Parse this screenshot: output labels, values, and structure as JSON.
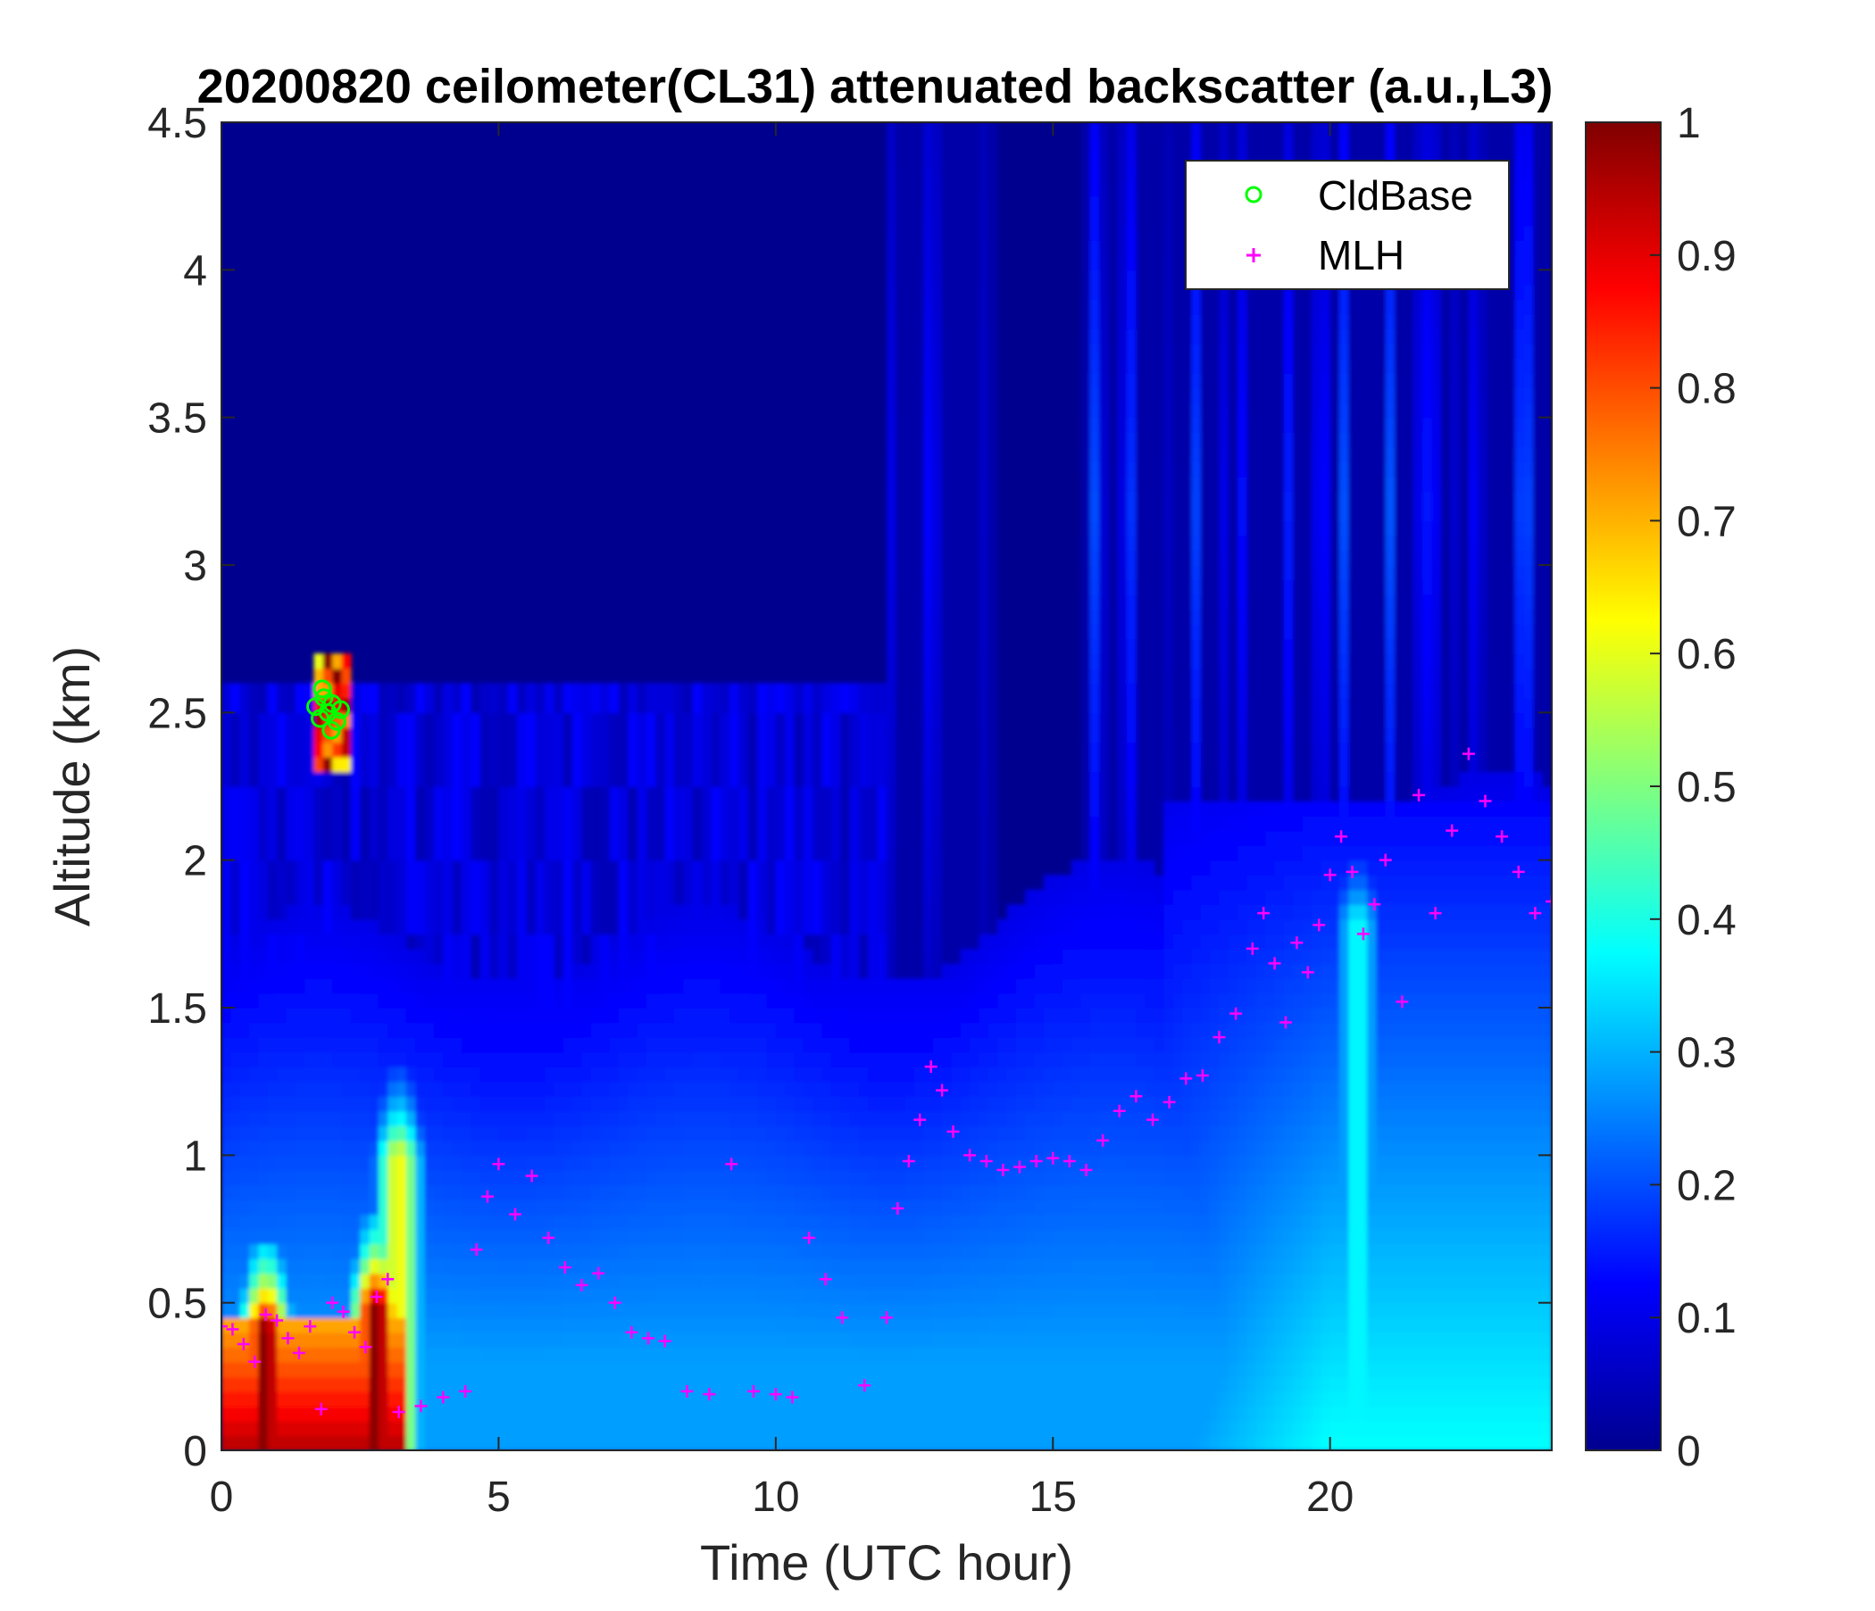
{
  "chart_data": {
    "type": "heatmap",
    "title": "20200820 ceilometer(CL31) attenuated backscatter (a.u.,L3)",
    "xlabel": "Time (UTC hour)",
    "ylabel": "Altitude (km)",
    "xlim": [
      0,
      24
    ],
    "ylim": [
      0,
      4.5
    ],
    "x_ticks": [
      0,
      5,
      10,
      15,
      20
    ],
    "y_ticks": [
      0,
      0.5,
      1,
      1.5,
      2,
      2.5,
      3,
      3.5,
      4,
      4.5
    ],
    "x_tick_labels": [
      "0",
      "5",
      "10",
      "15",
      "20"
    ],
    "y_tick_labels": [
      "0",
      "0.5",
      "1",
      "1.5",
      "2",
      "2.5",
      "3",
      "3.5",
      "4",
      "4.5"
    ],
    "colorbar": {
      "colormap": "jet",
      "range": [
        0,
        1
      ],
      "ticks": [
        0,
        0.1,
        0.2,
        0.3,
        0.4,
        0.5,
        0.6,
        0.7,
        0.8,
        0.9,
        1
      ],
      "tick_labels": [
        "0",
        "0.1",
        "0.2",
        "0.3",
        "0.4",
        "0.5",
        "0.6",
        "0.7",
        "0.8",
        "0.9",
        "1"
      ]
    },
    "legend": {
      "position": "top-right",
      "entries": [
        {
          "label": "CldBase",
          "marker": "circle",
          "color": "#00ff00"
        },
        {
          "label": "MLH",
          "marker": "plus",
          "color": "#ff00ff"
        }
      ]
    },
    "series": [
      {
        "name": "CldBase",
        "marker": "circle",
        "color": "#00ff00",
        "x": [
          1.7,
          1.78,
          1.85,
          1.92,
          2.0,
          2.08,
          2.15,
          1.82,
          1.98
        ],
        "y": [
          2.52,
          2.48,
          2.55,
          2.5,
          2.53,
          2.47,
          2.51,
          2.58,
          2.44
        ]
      },
      {
        "name": "MLH",
        "marker": "plus",
        "color": "#ff00ff",
        "x": [
          0.0,
          0.2,
          0.4,
          0.6,
          0.8,
          1.0,
          1.2,
          1.4,
          1.6,
          1.8,
          2.0,
          2.2,
          2.4,
          2.6,
          2.8,
          3.0,
          3.2,
          3.6,
          4.0,
          4.4,
          4.6,
          4.8,
          5.0,
          5.3,
          5.6,
          5.9,
          6.2,
          6.5,
          6.8,
          7.1,
          7.4,
          7.7,
          8.0,
          8.4,
          8.8,
          9.2,
          9.6,
          10.0,
          10.3,
          10.6,
          10.9,
          11.2,
          11.6,
          12.0,
          12.2,
          12.4,
          12.6,
          12.8,
          13.0,
          13.2,
          13.5,
          13.8,
          14.1,
          14.4,
          14.7,
          15.0,
          15.3,
          15.6,
          15.9,
          16.2,
          16.5,
          16.8,
          17.1,
          17.4,
          17.7,
          18.0,
          18.3,
          18.6,
          18.8,
          19.0,
          19.2,
          19.4,
          19.6,
          19.8,
          20.0,
          20.2,
          20.4,
          20.6,
          20.8,
          21.0,
          21.3,
          21.6,
          21.9,
          22.2,
          22.5,
          22.8,
          23.1,
          23.4,
          23.7,
          24.0
        ],
        "y": [
          0.42,
          0.41,
          0.36,
          0.3,
          0.46,
          0.44,
          0.38,
          0.33,
          0.42,
          0.14,
          0.5,
          0.47,
          0.4,
          0.35,
          0.52,
          0.58,
          0.13,
          0.15,
          0.18,
          0.2,
          0.68,
          0.86,
          0.97,
          0.8,
          0.93,
          0.72,
          0.62,
          0.56,
          0.6,
          0.5,
          0.4,
          0.38,
          0.37,
          0.2,
          0.19,
          0.97,
          0.2,
          0.19,
          0.18,
          0.72,
          0.58,
          0.45,
          0.22,
          0.45,
          0.82,
          0.98,
          1.12,
          1.3,
          1.22,
          1.08,
          1.0,
          0.98,
          0.95,
          0.96,
          0.98,
          0.99,
          0.98,
          0.95,
          1.05,
          1.15,
          1.2,
          1.12,
          1.18,
          1.26,
          1.27,
          1.4,
          1.48,
          1.7,
          1.82,
          1.65,
          1.45,
          1.72,
          1.62,
          1.78,
          1.95,
          2.08,
          1.96,
          1.75,
          1.85,
          2.0,
          1.52,
          2.22,
          1.82,
          2.1,
          2.36,
          2.2,
          2.08,
          1.96,
          1.82,
          1.86
        ]
      }
    ],
    "field": {
      "description_values": "backscatter intensity in a.u. (0-1) modeled from the image",
      "surface_layer": [
        {
          "x_start": 0.0,
          "x_end": 3.3,
          "alt_top": 0.45,
          "value": 0.95
        },
        {
          "x_start": 3.3,
          "x_end": 24.0,
          "alt_top": 0.3,
          "value": 0.3
        }
      ],
      "peaks": [
        {
          "x": 0.8,
          "alt_top": 0.42,
          "value": 1.0
        },
        {
          "x": 2.8,
          "alt_top": 0.5,
          "value": 1.0
        },
        {
          "x": 3.2,
          "alt_top": 1.0,
          "value": 0.62
        },
        {
          "x": 20.5,
          "alt_top": 1.8,
          "value": 0.38
        }
      ],
      "cloud": {
        "x_start": 1.7,
        "x_end": 2.3,
        "alt_bottom": 2.3,
        "alt_top": 2.7,
        "value": 1.0
      }
    }
  }
}
